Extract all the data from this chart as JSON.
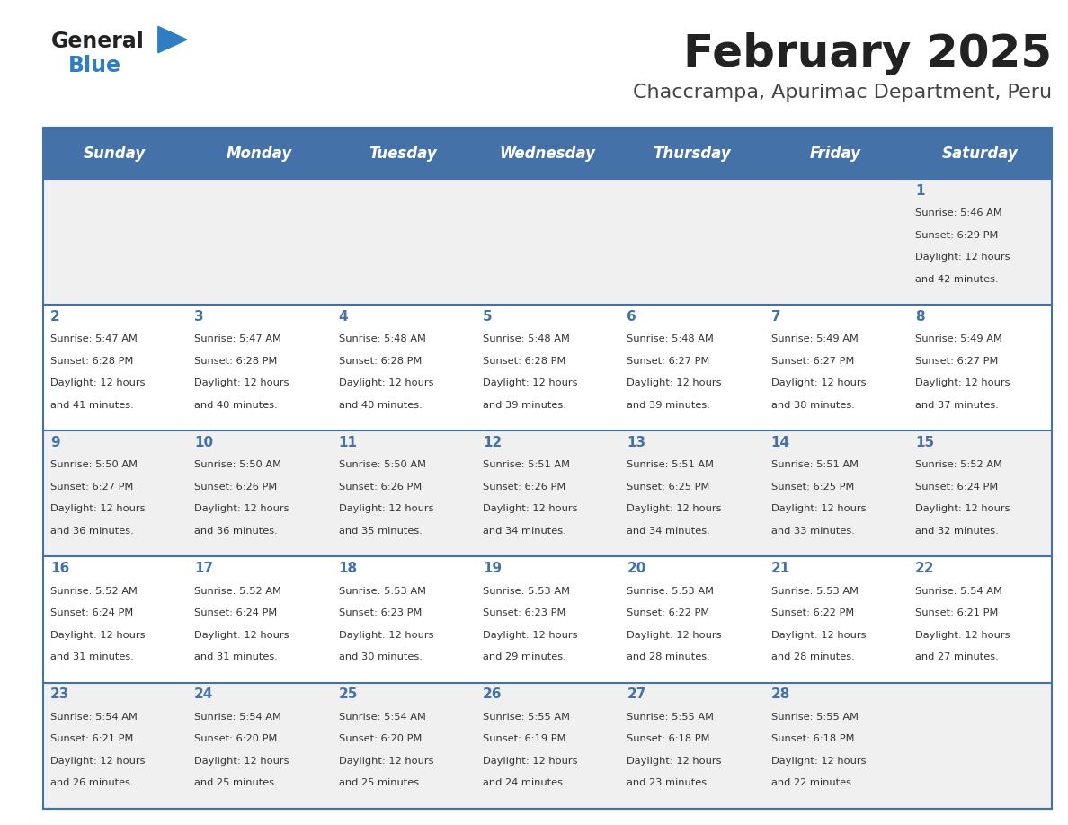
{
  "title": "February 2025",
  "subtitle": "Chaccrampa, Apurimac Department, Peru",
  "days_of_week": [
    "Sunday",
    "Monday",
    "Tuesday",
    "Wednesday",
    "Thursday",
    "Friday",
    "Saturday"
  ],
  "header_bg": "#4472a8",
  "header_text": "#ffffff",
  "row_bg_odd": "#f0f0f0",
  "row_bg_even": "#ffffff",
  "cell_text_color": "#333333",
  "day_num_color": "#4472a8",
  "title_color": "#222222",
  "subtitle_color": "#444444",
  "logo_general_color": "#222222",
  "logo_blue_color": "#2e7ec1",
  "border_color": "#4472a8",
  "calendar_data": [
    [
      null,
      null,
      null,
      null,
      null,
      null,
      {
        "day": 1,
        "sunrise": "5:46 AM",
        "sunset": "6:29 PM",
        "daylight": "12 hours and 42 minutes."
      }
    ],
    [
      {
        "day": 2,
        "sunrise": "5:47 AM",
        "sunset": "6:28 PM",
        "daylight": "12 hours and 41 minutes."
      },
      {
        "day": 3,
        "sunrise": "5:47 AM",
        "sunset": "6:28 PM",
        "daylight": "12 hours and 40 minutes."
      },
      {
        "day": 4,
        "sunrise": "5:48 AM",
        "sunset": "6:28 PM",
        "daylight": "12 hours and 40 minutes."
      },
      {
        "day": 5,
        "sunrise": "5:48 AM",
        "sunset": "6:28 PM",
        "daylight": "12 hours and 39 minutes."
      },
      {
        "day": 6,
        "sunrise": "5:48 AM",
        "sunset": "6:27 PM",
        "daylight": "12 hours and 39 minutes."
      },
      {
        "day": 7,
        "sunrise": "5:49 AM",
        "sunset": "6:27 PM",
        "daylight": "12 hours and 38 minutes."
      },
      {
        "day": 8,
        "sunrise": "5:49 AM",
        "sunset": "6:27 PM",
        "daylight": "12 hours and 37 minutes."
      }
    ],
    [
      {
        "day": 9,
        "sunrise": "5:50 AM",
        "sunset": "6:27 PM",
        "daylight": "12 hours and 36 minutes."
      },
      {
        "day": 10,
        "sunrise": "5:50 AM",
        "sunset": "6:26 PM",
        "daylight": "12 hours and 36 minutes."
      },
      {
        "day": 11,
        "sunrise": "5:50 AM",
        "sunset": "6:26 PM",
        "daylight": "12 hours and 35 minutes."
      },
      {
        "day": 12,
        "sunrise": "5:51 AM",
        "sunset": "6:26 PM",
        "daylight": "12 hours and 34 minutes."
      },
      {
        "day": 13,
        "sunrise": "5:51 AM",
        "sunset": "6:25 PM",
        "daylight": "12 hours and 34 minutes."
      },
      {
        "day": 14,
        "sunrise": "5:51 AM",
        "sunset": "6:25 PM",
        "daylight": "12 hours and 33 minutes."
      },
      {
        "day": 15,
        "sunrise": "5:52 AM",
        "sunset": "6:24 PM",
        "daylight": "12 hours and 32 minutes."
      }
    ],
    [
      {
        "day": 16,
        "sunrise": "5:52 AM",
        "sunset": "6:24 PM",
        "daylight": "12 hours and 31 minutes."
      },
      {
        "day": 17,
        "sunrise": "5:52 AM",
        "sunset": "6:24 PM",
        "daylight": "12 hours and 31 minutes."
      },
      {
        "day": 18,
        "sunrise": "5:53 AM",
        "sunset": "6:23 PM",
        "daylight": "12 hours and 30 minutes."
      },
      {
        "day": 19,
        "sunrise": "5:53 AM",
        "sunset": "6:23 PM",
        "daylight": "12 hours and 29 minutes."
      },
      {
        "day": 20,
        "sunrise": "5:53 AM",
        "sunset": "6:22 PM",
        "daylight": "12 hours and 28 minutes."
      },
      {
        "day": 21,
        "sunrise": "5:53 AM",
        "sunset": "6:22 PM",
        "daylight": "12 hours and 28 minutes."
      },
      {
        "day": 22,
        "sunrise": "5:54 AM",
        "sunset": "6:21 PM",
        "daylight": "12 hours and 27 minutes."
      }
    ],
    [
      {
        "day": 23,
        "sunrise": "5:54 AM",
        "sunset": "6:21 PM",
        "daylight": "12 hours and 26 minutes."
      },
      {
        "day": 24,
        "sunrise": "5:54 AM",
        "sunset": "6:20 PM",
        "daylight": "12 hours and 25 minutes."
      },
      {
        "day": 25,
        "sunrise": "5:54 AM",
        "sunset": "6:20 PM",
        "daylight": "12 hours and 25 minutes."
      },
      {
        "day": 26,
        "sunrise": "5:55 AM",
        "sunset": "6:19 PM",
        "daylight": "12 hours and 24 minutes."
      },
      {
        "day": 27,
        "sunrise": "5:55 AM",
        "sunset": "6:18 PM",
        "daylight": "12 hours and 23 minutes."
      },
      {
        "day": 28,
        "sunrise": "5:55 AM",
        "sunset": "6:18 PM",
        "daylight": "12 hours and 22 minutes."
      },
      null
    ]
  ]
}
